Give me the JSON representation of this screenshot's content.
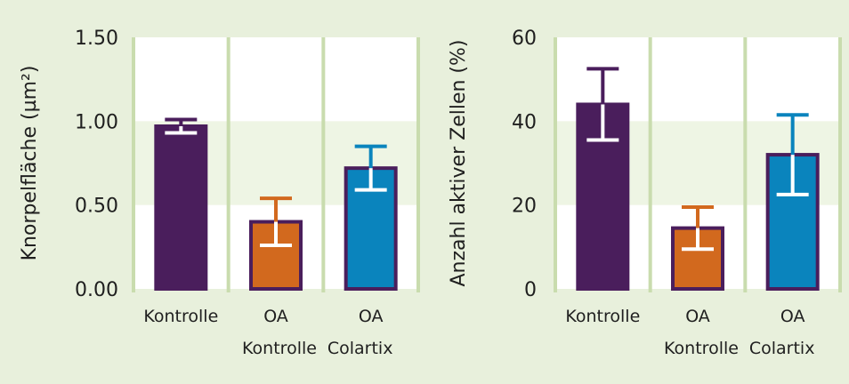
{
  "chart_data": [
    {
      "type": "bar",
      "ylabel": "Knorpelfläche (µm²)",
      "ylim": [
        0,
        1.5
      ],
      "yticks": [
        "0.00",
        "0.50",
        "1.00",
        "1.50"
      ],
      "tick_values": [
        0,
        0.5,
        1.0,
        1.5
      ],
      "categories": [
        {
          "line1": "Kontrolle",
          "line2": ""
        },
        {
          "line1": "OA",
          "line2": "Kontrolle"
        },
        {
          "line1": "OA",
          "line2": "Colartix"
        }
      ],
      "values": [
        0.97,
        0.4,
        0.72
      ],
      "errors": [
        0.04,
        0.14,
        0.13
      ],
      "colors": [
        "#4a1e5c",
        "#d2691e",
        "#0a84bd"
      ],
      "band": [
        0.5,
        1.0
      ],
      "grid": true
    },
    {
      "type": "bar",
      "ylabel": "Anzahl aktiver Zellen (%)",
      "ylim": [
        0,
        60
      ],
      "yticks": [
        "0",
        "20",
        "40",
        "60"
      ],
      "tick_values": [
        0,
        20,
        40,
        60
      ],
      "categories": [
        {
          "line1": "Kontrolle",
          "line2": ""
        },
        {
          "line1": "OA",
          "line2": "Kontrolle"
        },
        {
          "line1": "OA",
          "line2": "Colartix"
        }
      ],
      "values": [
        44,
        14.5,
        32
      ],
      "errors": [
        8.5,
        5,
        9.5
      ],
      "colors": [
        "#4a1e5c",
        "#d2691e",
        "#0a84bd"
      ],
      "band": [
        20,
        40
      ],
      "grid": true
    }
  ],
  "colors": {
    "background": "#e8f0dc",
    "plot_bg": "#ffffff",
    "band": "#eef5e4",
    "divider": "#c9dcae",
    "outline": "#4a1e5c",
    "whisker": "#ffffff"
  }
}
